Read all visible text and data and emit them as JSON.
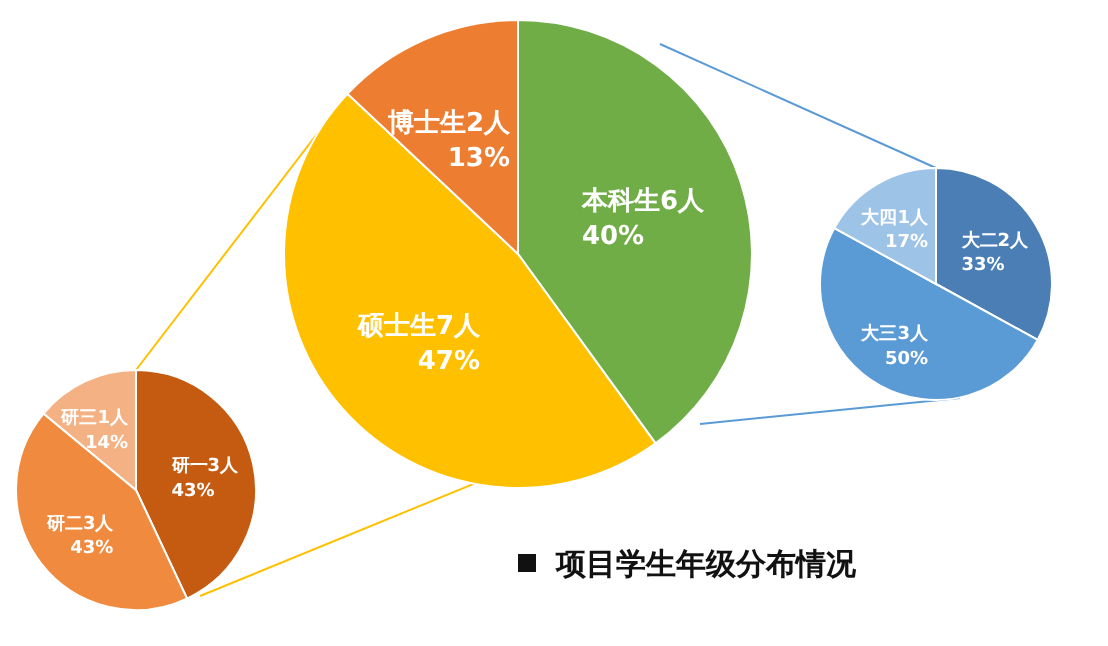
{
  "chart_data": [
    {
      "type": "pie",
      "title": "项目学生年级分布情况",
      "categories": [
        "本科生6人",
        "硕士生7人",
        "博士生2人"
      ],
      "values": [
        40,
        47,
        13
      ],
      "colors": [
        "#70ad47",
        "#ffc000",
        "#ed7d31"
      ],
      "value_labels": [
        "40%",
        "47%",
        "13%"
      ]
    },
    {
      "type": "pie",
      "categories": [
        "研一3人",
        "研二3人",
        "研三1人"
      ],
      "values": [
        43,
        43,
        14
      ],
      "colors": [
        "#c55a11",
        "#f08a3e",
        "#f4b183"
      ],
      "value_labels": [
        "43%",
        "43%",
        "14%"
      ]
    },
    {
      "type": "pie",
      "categories": [
        "大二2人",
        "大三3人",
        "大四1人"
      ],
      "values": [
        33,
        50,
        17
      ],
      "colors": [
        "#4a7eb5",
        "#5b9bd5",
        "#9dc3e6"
      ],
      "value_labels": [
        "33%",
        "50%",
        "17%"
      ]
    }
  ]
}
